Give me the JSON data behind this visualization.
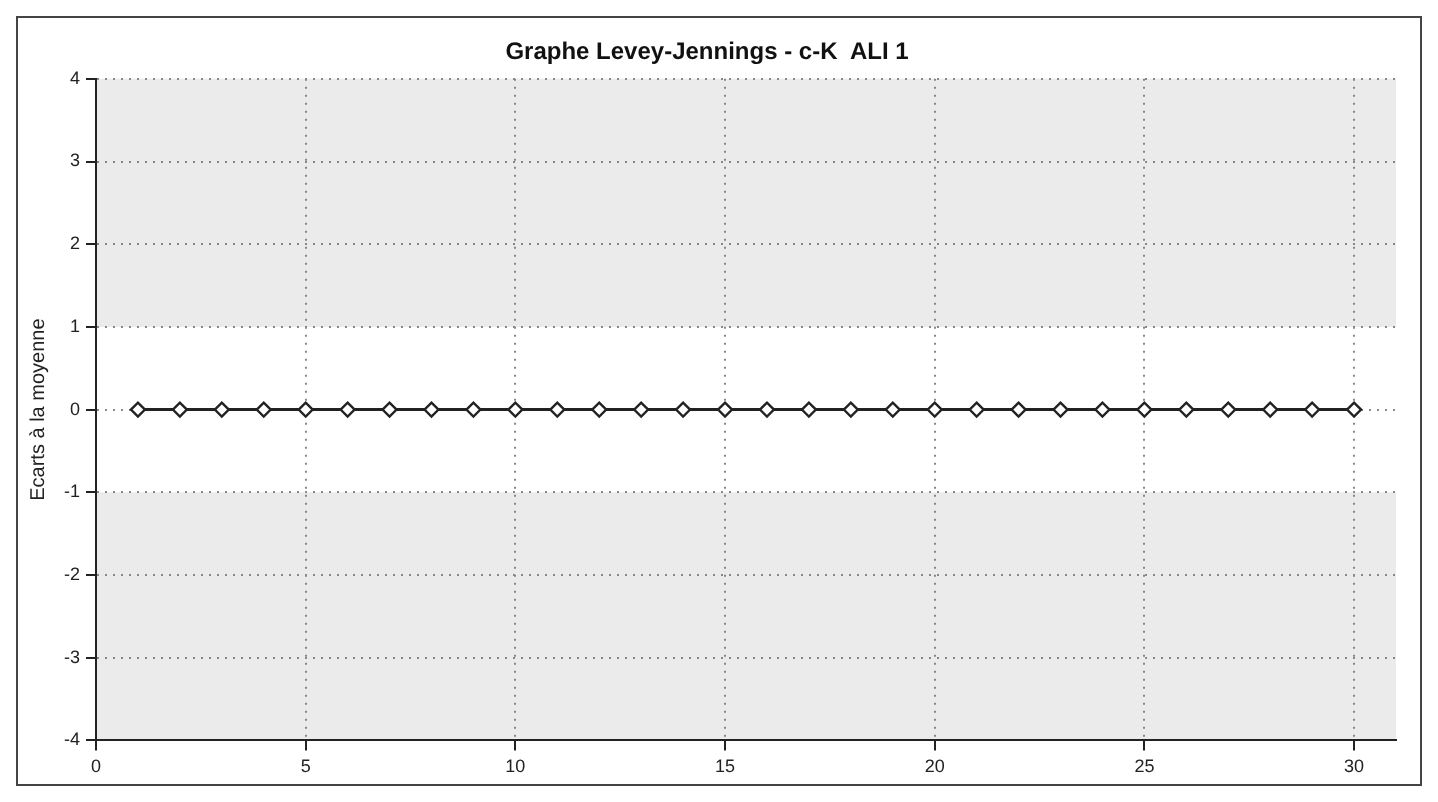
{
  "chart_data": {
    "type": "line",
    "title": "Graphe Levey-Jennings - c-K  ALI 1",
    "ylabel": "Ecarts à la moyenne",
    "x": [
      1,
      2,
      3,
      4,
      5,
      6,
      7,
      8,
      9,
      10,
      11,
      12,
      13,
      14,
      15,
      16,
      17,
      18,
      19,
      20,
      21,
      22,
      23,
      24,
      25,
      26,
      27,
      28,
      29,
      30
    ],
    "series": [
      {
        "color": "#222222",
        "values": [
          0,
          0,
          0,
          0,
          0,
          0,
          0,
          0,
          0,
          0,
          0,
          0,
          0,
          0,
          0,
          0,
          0,
          0,
          0,
          0,
          0,
          0,
          0,
          0,
          0,
          0,
          0,
          0,
          0,
          0
        ]
      }
    ],
    "xlim": [
      0,
      31
    ],
    "xticks": [
      0,
      5,
      10,
      15,
      20,
      25,
      30
    ],
    "ylim": [
      -4,
      4
    ],
    "yticks": [
      -4,
      -3,
      -2,
      -1,
      0,
      1,
      2,
      3,
      4
    ],
    "bands": [
      {
        "axis": "y",
        "from": 1,
        "to": 4,
        "color": "#ebebeb"
      },
      {
        "axis": "y",
        "from": -4,
        "to": -1,
        "color": "#ebebeb"
      }
    ],
    "grid": true,
    "legend": false,
    "marker": "diamond",
    "line_style": "solid"
  }
}
